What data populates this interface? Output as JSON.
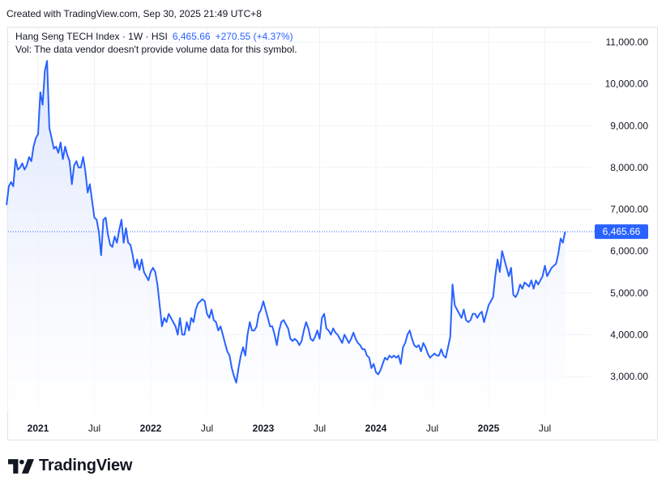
{
  "header": {
    "created_text": "Created with TradingView.com, Sep 30, 2025 21:49 UTC+8"
  },
  "legend": {
    "symbol_line": "Hang Seng TECH Index · 1W · HSI",
    "last_value": "6,465.66",
    "change": "+270.55 (+4.37%)",
    "volume_note": "Vol: The data vendor doesn't provide volume data for this symbol."
  },
  "brand": {
    "name": "TradingView",
    "icon": "tradingview-logo-icon"
  },
  "colors": {
    "line": "#2962ff",
    "fill_top": "#dbe4fd",
    "fill_bottom": "#ffffff",
    "grid": "#f0f3fa",
    "badge": "#2962ff"
  },
  "chart_data": {
    "type": "area",
    "title": "",
    "xlabel": "",
    "ylabel": "",
    "ylim": [
      2000,
      11500
    ],
    "y_ticks": [
      3000,
      4000,
      5000,
      6000,
      7000,
      8000,
      9000,
      10000,
      11000
    ],
    "y_tick_labels": [
      "3,000.00",
      "4,000.00",
      "5,000.00",
      "6,000.00",
      "7,000.00",
      "8,000.00",
      "9,000.00",
      "10,000.00",
      "11,000.00"
    ],
    "x_ticks": [
      {
        "label": "2021",
        "t": 2021.0,
        "bold": true
      },
      {
        "label": "Jul",
        "t": 2021.5,
        "bold": false
      },
      {
        "label": "2022",
        "t": 2022.0,
        "bold": true
      },
      {
        "label": "Jul",
        "t": 2022.5,
        "bold": false
      },
      {
        "label": "2023",
        "t": 2023.0,
        "bold": true
      },
      {
        "label": "Jul",
        "t": 2023.5,
        "bold": false
      },
      {
        "label": "2024",
        "t": 2024.0,
        "bold": true
      },
      {
        "label": "Jul",
        "t": 2024.5,
        "bold": false
      },
      {
        "label": "2025",
        "t": 2025.0,
        "bold": true
      },
      {
        "label": "Jul",
        "t": 2025.5,
        "bold": false
      }
    ],
    "last_value_label": "6,465.66",
    "last_value": 6465.66,
    "series": [
      {
        "points": [
          [
            2020.72,
            7100
          ],
          [
            2020.74,
            7550
          ],
          [
            2020.76,
            7650
          ],
          [
            2020.78,
            7550
          ],
          [
            2020.8,
            8200
          ],
          [
            2020.82,
            7950
          ],
          [
            2020.84,
            8000
          ],
          [
            2020.86,
            8100
          ],
          [
            2020.88,
            7950
          ],
          [
            2020.9,
            8050
          ],
          [
            2020.92,
            8250
          ],
          [
            2020.94,
            8150
          ],
          [
            2020.96,
            8500
          ],
          [
            2020.98,
            8700
          ],
          [
            2021.0,
            8800
          ],
          [
            2021.02,
            9800
          ],
          [
            2021.04,
            9500
          ],
          [
            2021.06,
            10300
          ],
          [
            2021.08,
            10550
          ],
          [
            2021.1,
            8950
          ],
          [
            2021.12,
            8700
          ],
          [
            2021.14,
            8450
          ],
          [
            2021.16,
            8500
          ],
          [
            2021.18,
            8350
          ],
          [
            2021.2,
            8600
          ],
          [
            2021.22,
            8200
          ],
          [
            2021.24,
            8500
          ],
          [
            2021.26,
            8300
          ],
          [
            2021.28,
            8150
          ],
          [
            2021.3,
            7600
          ],
          [
            2021.32,
            8050
          ],
          [
            2021.34,
            8150
          ],
          [
            2021.36,
            8000
          ],
          [
            2021.38,
            8000
          ],
          [
            2021.4,
            8250
          ],
          [
            2021.42,
            7900
          ],
          [
            2021.44,
            7400
          ],
          [
            2021.46,
            7600
          ],
          [
            2021.48,
            7200
          ],
          [
            2021.5,
            6800
          ],
          [
            2021.52,
            6750
          ],
          [
            2021.54,
            6450
          ],
          [
            2021.56,
            5900
          ],
          [
            2021.58,
            6750
          ],
          [
            2021.6,
            6800
          ],
          [
            2021.62,
            6400
          ],
          [
            2021.64,
            6150
          ],
          [
            2021.66,
            6100
          ],
          [
            2021.68,
            6350
          ],
          [
            2021.7,
            6200
          ],
          [
            2021.72,
            6500
          ],
          [
            2021.74,
            6750
          ],
          [
            2021.76,
            6200
          ],
          [
            2021.78,
            6550
          ],
          [
            2021.8,
            6200
          ],
          [
            2021.82,
            6150
          ],
          [
            2021.84,
            5900
          ],
          [
            2021.86,
            5600
          ],
          [
            2021.88,
            5800
          ],
          [
            2021.9,
            5550
          ],
          [
            2021.92,
            5800
          ],
          [
            2021.94,
            5500
          ],
          [
            2021.96,
            5400
          ],
          [
            2021.98,
            5300
          ],
          [
            2022.0,
            5500
          ],
          [
            2022.02,
            5600
          ],
          [
            2022.04,
            5500
          ],
          [
            2022.06,
            5200
          ],
          [
            2022.08,
            4700
          ],
          [
            2022.1,
            4200
          ],
          [
            2022.12,
            4400
          ],
          [
            2022.14,
            4300
          ],
          [
            2022.16,
            4500
          ],
          [
            2022.18,
            4400
          ],
          [
            2022.2,
            4300
          ],
          [
            2022.22,
            4200
          ],
          [
            2022.24,
            4000
          ],
          [
            2022.26,
            4400
          ],
          [
            2022.28,
            4000
          ],
          [
            2022.3,
            4000
          ],
          [
            2022.32,
            4300
          ],
          [
            2022.34,
            4100
          ],
          [
            2022.36,
            4400
          ],
          [
            2022.38,
            4300
          ],
          [
            2022.4,
            4600
          ],
          [
            2022.42,
            4750
          ],
          [
            2022.44,
            4800
          ],
          [
            2022.46,
            4850
          ],
          [
            2022.48,
            4800
          ],
          [
            2022.5,
            4500
          ],
          [
            2022.52,
            4400
          ],
          [
            2022.54,
            4600
          ],
          [
            2022.56,
            4350
          ],
          [
            2022.58,
            4300
          ],
          [
            2022.6,
            4100
          ],
          [
            2022.62,
            4200
          ],
          [
            2022.64,
            4000
          ],
          [
            2022.66,
            3800
          ],
          [
            2022.68,
            3600
          ],
          [
            2022.7,
            3500
          ],
          [
            2022.72,
            3200
          ],
          [
            2022.74,
            3000
          ],
          [
            2022.76,
            2850
          ],
          [
            2022.78,
            3200
          ],
          [
            2022.8,
            3500
          ],
          [
            2022.82,
            3700
          ],
          [
            2022.84,
            3500
          ],
          [
            2022.86,
            4000
          ],
          [
            2022.88,
            4300
          ],
          [
            2022.9,
            4100
          ],
          [
            2022.92,
            4100
          ],
          [
            2022.94,
            4200
          ],
          [
            2022.96,
            4500
          ],
          [
            2022.98,
            4600
          ],
          [
            2023.0,
            4800
          ],
          [
            2023.02,
            4600
          ],
          [
            2023.04,
            4400
          ],
          [
            2023.06,
            4200
          ],
          [
            2023.08,
            4200
          ],
          [
            2023.1,
            4000
          ],
          [
            2023.12,
            3750
          ],
          [
            2023.14,
            4100
          ],
          [
            2023.16,
            4300
          ],
          [
            2023.18,
            4350
          ],
          [
            2023.2,
            4250
          ],
          [
            2023.22,
            4150
          ],
          [
            2023.24,
            3900
          ],
          [
            2023.26,
            3850
          ],
          [
            2023.28,
            3900
          ],
          [
            2023.3,
            3850
          ],
          [
            2023.32,
            3750
          ],
          [
            2023.34,
            3850
          ],
          [
            2023.36,
            4100
          ],
          [
            2023.38,
            4300
          ],
          [
            2023.4,
            4150
          ],
          [
            2023.42,
            3900
          ],
          [
            2023.44,
            3850
          ],
          [
            2023.46,
            3950
          ],
          [
            2023.48,
            4100
          ],
          [
            2023.5,
            3900
          ],
          [
            2023.52,
            4400
          ],
          [
            2023.54,
            4500
          ],
          [
            2023.56,
            4150
          ],
          [
            2023.58,
            4100
          ],
          [
            2023.6,
            4000
          ],
          [
            2023.62,
            4150
          ],
          [
            2023.64,
            4050
          ],
          [
            2023.66,
            4000
          ],
          [
            2023.68,
            3900
          ],
          [
            2023.7,
            3800
          ],
          [
            2023.72,
            4000
          ],
          [
            2023.74,
            3900
          ],
          [
            2023.76,
            3800
          ],
          [
            2023.78,
            3900
          ],
          [
            2023.8,
            4050
          ],
          [
            2023.82,
            3900
          ],
          [
            2023.84,
            3800
          ],
          [
            2023.86,
            3750
          ],
          [
            2023.88,
            3650
          ],
          [
            2023.9,
            3650
          ],
          [
            2023.92,
            3500
          ],
          [
            2023.94,
            3450
          ],
          [
            2023.96,
            3200
          ],
          [
            2023.98,
            3300
          ],
          [
            2024.0,
            3100
          ],
          [
            2024.02,
            3050
          ],
          [
            2024.04,
            3150
          ],
          [
            2024.06,
            3300
          ],
          [
            2024.08,
            3450
          ],
          [
            2024.1,
            3400
          ],
          [
            2024.12,
            3500
          ],
          [
            2024.14,
            3450
          ],
          [
            2024.16,
            3500
          ],
          [
            2024.18,
            3450
          ],
          [
            2024.2,
            3500
          ],
          [
            2024.22,
            3300
          ],
          [
            2024.24,
            3700
          ],
          [
            2024.26,
            3800
          ],
          [
            2024.28,
            4000
          ],
          [
            2024.3,
            4100
          ],
          [
            2024.32,
            3900
          ],
          [
            2024.34,
            3750
          ],
          [
            2024.36,
            3700
          ],
          [
            2024.38,
            3750
          ],
          [
            2024.4,
            3600
          ],
          [
            2024.42,
            3800
          ],
          [
            2024.44,
            3700
          ],
          [
            2024.46,
            3550
          ],
          [
            2024.48,
            3450
          ],
          [
            2024.5,
            3500
          ],
          [
            2024.52,
            3550
          ],
          [
            2024.54,
            3500
          ],
          [
            2024.56,
            3500
          ],
          [
            2024.58,
            3650
          ],
          [
            2024.6,
            3500
          ],
          [
            2024.62,
            3450
          ],
          [
            2024.64,
            3700
          ],
          [
            2024.66,
            3950
          ],
          [
            2024.68,
            5200
          ],
          [
            2024.7,
            4700
          ],
          [
            2024.72,
            4600
          ],
          [
            2024.74,
            4500
          ],
          [
            2024.76,
            4400
          ],
          [
            2024.78,
            4600
          ],
          [
            2024.8,
            4350
          ],
          [
            2024.82,
            4300
          ],
          [
            2024.84,
            4350
          ],
          [
            2024.86,
            4500
          ],
          [
            2024.88,
            4500
          ],
          [
            2024.9,
            4400
          ],
          [
            2024.92,
            4500
          ],
          [
            2024.94,
            4550
          ],
          [
            2024.96,
            4300
          ],
          [
            2024.98,
            4500
          ],
          [
            2025.0,
            4700
          ],
          [
            2025.02,
            4800
          ],
          [
            2025.04,
            4900
          ],
          [
            2025.06,
            5400
          ],
          [
            2025.08,
            5800
          ],
          [
            2025.1,
            5500
          ],
          [
            2025.12,
            6000
          ],
          [
            2025.14,
            5800
          ],
          [
            2025.16,
            5600
          ],
          [
            2025.18,
            5400
          ],
          [
            2025.2,
            5600
          ],
          [
            2025.22,
            4950
          ],
          [
            2025.24,
            4900
          ],
          [
            2025.26,
            5000
          ],
          [
            2025.28,
            5200
          ],
          [
            2025.3,
            5100
          ],
          [
            2025.32,
            5250
          ],
          [
            2025.34,
            5200
          ],
          [
            2025.36,
            5150
          ],
          [
            2025.38,
            5300
          ],
          [
            2025.4,
            5100
          ],
          [
            2025.42,
            5300
          ],
          [
            2025.44,
            5200
          ],
          [
            2025.46,
            5300
          ],
          [
            2025.48,
            5400
          ],
          [
            2025.5,
            5650
          ],
          [
            2025.52,
            5400
          ],
          [
            2025.54,
            5500
          ],
          [
            2025.56,
            5600
          ],
          [
            2025.58,
            5650
          ],
          [
            2025.6,
            5700
          ],
          [
            2025.62,
            5950
          ],
          [
            2025.64,
            6300
          ],
          [
            2025.66,
            6200
          ],
          [
            2025.68,
            6465.66
          ]
        ]
      }
    ]
  }
}
